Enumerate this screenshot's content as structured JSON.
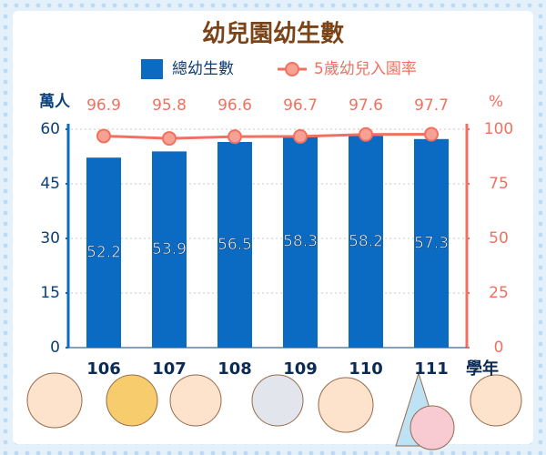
{
  "chart_data": {
    "type": "bar",
    "title": "幼兒園幼生數",
    "categories": [
      "106",
      "107",
      "108",
      "109",
      "110",
      "111"
    ],
    "x_label": "學年",
    "y_label": "萬人",
    "y2_label": "%",
    "series": [
      {
        "name": "總幼生數",
        "type": "bar",
        "color": "#0b6bc2",
        "values": [
          52.2,
          53.9,
          56.5,
          58.3,
          58.2,
          57.3
        ]
      },
      {
        "name": "5歲幼兒入園率",
        "type": "line",
        "axis": "y2",
        "color": "#f2705f",
        "values": [
          96.9,
          95.8,
          96.6,
          96.7,
          97.6,
          97.7
        ]
      }
    ],
    "ylim": [
      0,
      60
    ],
    "yticks": [
      0,
      15,
      30,
      45,
      60
    ],
    "y2lim": [
      0,
      100
    ],
    "y2ticks": [
      0,
      25,
      50,
      75,
      100
    ],
    "grid": true
  }
}
